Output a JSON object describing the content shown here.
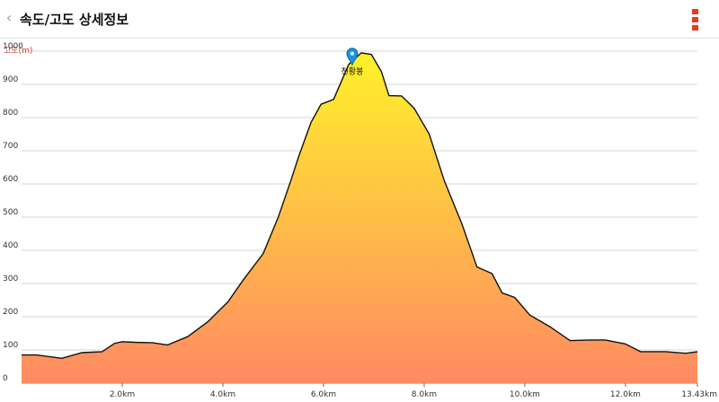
{
  "header": {
    "back_icon": "chevron-left-icon",
    "title": "속도/고도 상세정보",
    "menu_icon": "more-vertical-icon",
    "menu_color": "#e53a1d"
  },
  "chart_data": {
    "type": "area",
    "ylabel": "고도(m)",
    "xlabel": "",
    "y_ticks": [
      0,
      100,
      200,
      300,
      400,
      500,
      600,
      700,
      800,
      900,
      1000
    ],
    "x_ticks": [
      "2.0km",
      "4.0km",
      "6.0km",
      "8.0km",
      "10.0km",
      "12.0km",
      "13.43km"
    ],
    "x_tick_values": [
      2.0,
      4.0,
      6.0,
      8.0,
      10.0,
      12.0,
      13.43
    ],
    "xlim": [
      0,
      13.43
    ],
    "ylim": [
      0,
      1000
    ],
    "grid": true,
    "fill_gradient": {
      "top": "#fff12a",
      "bottom": "#ff8a63"
    },
    "series": [
      {
        "x": [
          0,
          0.3,
          0.8,
          1.2,
          1.6,
          1.85,
          2.0,
          2.25,
          2.6,
          2.9,
          3.3,
          3.7,
          4.1,
          4.4,
          4.8,
          5.1,
          5.35,
          5.5,
          5.75,
          5.95,
          6.2,
          6.5,
          6.75,
          6.95,
          7.15,
          7.3,
          7.55,
          7.8,
          8.1,
          8.4,
          8.75,
          9.05,
          9.35,
          9.55,
          9.8,
          10.1,
          10.5,
          10.9,
          11.3,
          11.6,
          12.0,
          12.3,
          12.8,
          13.2,
          13.43
        ],
        "values": [
          85,
          85,
          75,
          92,
          95,
          120,
          125,
          123,
          122,
          115,
          140,
          185,
          245,
          310,
          390,
          500,
          610,
          680,
          785,
          840,
          855,
          960,
          995,
          990,
          938,
          866,
          865,
          828,
          750,
          610,
          480,
          350,
          330,
          272,
          258,
          205,
          170,
          128,
          130,
          130,
          118,
          95,
          95,
          90,
          95
        ]
      }
    ],
    "annotations": [
      {
        "label": "천황봉",
        "x": 6.57,
        "y": 990,
        "icon": "map-pin-icon",
        "color": "#1f8fe0"
      }
    ]
  }
}
